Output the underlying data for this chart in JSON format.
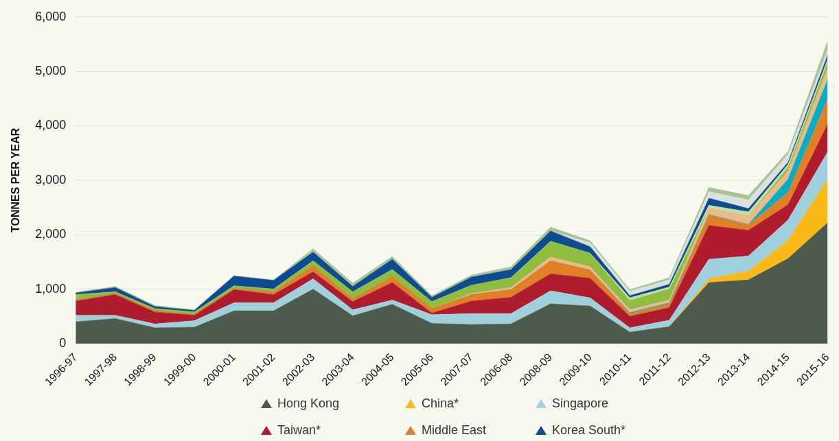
{
  "chart_data": {
    "type": "area",
    "stacked": true,
    "ylabel": "TONNES PER YEAR",
    "categories": [
      "1996-97",
      "1997-98",
      "1998-99",
      "1999-00",
      "2000-01",
      "2001-02",
      "2002-03",
      "2003-04",
      "2004-05",
      "2005-06",
      "2007-07",
      "2006-08",
      "2008-09",
      "2009-10",
      "2010-11",
      "2011-12",
      "2012-13",
      "2013-14",
      "2014-15",
      "2015-16"
    ],
    "ylim": [
      0,
      6000
    ],
    "yticks": [
      0,
      {
        "value": 1000,
        "label": "1,000"
      },
      {
        "value": 2000,
        "label": "2,000"
      },
      {
        "value": 3000,
        "label": "3,000"
      },
      {
        "value": 4000,
        "label": "4,000"
      },
      {
        "value": 5000,
        "label": "5,000"
      },
      {
        "value": 6000,
        "label": "6,000"
      }
    ],
    "grid": "y",
    "legend": "bottom",
    "series": [
      {
        "name": "Hong Kong",
        "color": "#4d5a4e",
        "values": [
          400,
          460,
          290,
          300,
          600,
          600,
          1000,
          510,
          720,
          370,
          350,
          360,
          730,
          690,
          210,
          310,
          1120,
          1170,
          1560,
          2220
        ]
      },
      {
        "name": "China*",
        "color": "#fbb917",
        "values": [
          0,
          0,
          0,
          0,
          0,
          0,
          0,
          0,
          0,
          0,
          0,
          0,
          0,
          0,
          0,
          0,
          70,
          160,
          340,
          800
        ]
      },
      {
        "name": "Singapore",
        "color": "#9fd0de",
        "values": [
          120,
          60,
          70,
          120,
          150,
          150,
          190,
          110,
          80,
          160,
          200,
          190,
          240,
          150,
          80,
          120,
          360,
          280,
          370,
          500
        ]
      },
      {
        "name": "Taiwan*",
        "color": "#ae1c2e",
        "values": [
          260,
          380,
          220,
          100,
          240,
          150,
          130,
          150,
          320,
          30,
          230,
          300,
          310,
          360,
          210,
          230,
          620,
          470,
          280,
          510
        ]
      },
      {
        "name": "Middle East",
        "color": "#e07f26",
        "values": [
          20,
          20,
          20,
          20,
          20,
          50,
          110,
          50,
          110,
          80,
          120,
          140,
          240,
          150,
          50,
          70,
          190,
          100,
          230,
          470
        ]
      },
      {
        "color": "#00aec7",
        "values": [
          0,
          0,
          0,
          0,
          0,
          0,
          0,
          0,
          0,
          0,
          0,
          0,
          0,
          0,
          20,
          20,
          10,
          10,
          240,
          350
        ]
      },
      {
        "color": "#ecb98a",
        "values": [
          0,
          0,
          0,
          0,
          0,
          0,
          0,
          0,
          0,
          0,
          20,
          40,
          70,
          60,
          50,
          50,
          110,
          150,
          150,
          210
        ]
      },
      {
        "color": "#8fbd3f",
        "values": [
          100,
          30,
          40,
          40,
          50,
          50,
          90,
          130,
          130,
          130,
          150,
          180,
          290,
          250,
          170,
          200,
          0,
          0,
          60,
          100
        ]
      },
      {
        "color": "#c3dca0",
        "values": [
          0,
          0,
          0,
          0,
          0,
          0,
          0,
          0,
          0,
          0,
          0,
          0,
          0,
          0,
          50,
          40,
          60,
          80,
          60,
          60
        ]
      },
      {
        "name": "Korea South*",
        "color": "#0d4c92",
        "values": [
          30,
          80,
          40,
          30,
          180,
          160,
          160,
          100,
          190,
          80,
          150,
          150,
          190,
          120,
          40,
          50,
          130,
          60,
          40,
          80
        ]
      },
      {
        "color": "#dcdfe0",
        "values": [
          0,
          0,
          0,
          0,
          0,
          0,
          0,
          0,
          0,
          0,
          0,
          0,
          0,
          70,
          80,
          80,
          120,
          160,
          150,
          90
        ]
      },
      {
        "color": "#a8c48f",
        "values": [
          10,
          20,
          20,
          10,
          10,
          10,
          60,
          60,
          50,
          30,
          40,
          50,
          70,
          40,
          30,
          40,
          80,
          80,
          50,
          170
        ]
      }
    ]
  }
}
